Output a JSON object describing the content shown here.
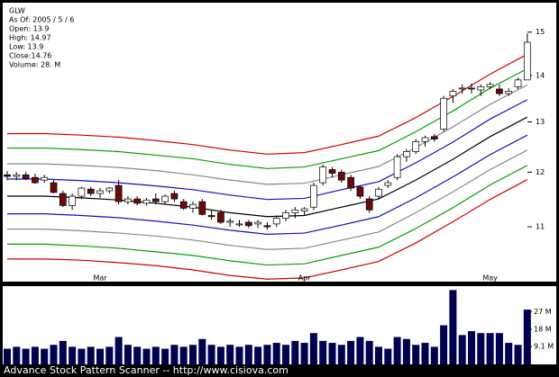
{
  "chart_data": {
    "type": "candlestick",
    "info": [
      "GLW",
      "As Of: 2005 / 5 / 6",
      "Open: 13.9",
      "High: 14.97",
      "Low: 13.9",
      "Close:14.76",
      "Volume: 28. M"
    ],
    "categories": [
      null,
      null,
      null,
      null,
      null,
      null,
      null,
      null,
      null,
      null,
      "Mar",
      null,
      null,
      null,
      null,
      null,
      null,
      null,
      null,
      null,
      null,
      null,
      null,
      null,
      null,
      null,
      null,
      null,
      null,
      null,
      null,
      null,
      "Apr",
      null,
      null,
      null,
      null,
      null,
      null,
      null,
      null,
      null,
      null,
      null,
      null,
      null,
      null,
      null,
      null,
      null,
      null,
      null,
      "May",
      null,
      null,
      null,
      null
    ],
    "open": [
      11.95,
      11.92,
      11.95,
      11.9,
      11.85,
      11.8,
      11.6,
      11.38,
      11.55,
      11.68,
      11.6,
      11.65,
      11.75,
      11.45,
      11.5,
      11.42,
      11.5,
      11.45,
      11.6,
      11.45,
      11.33,
      11.45,
      11.2,
      11.25,
      11.08,
      11.05,
      11.08,
      11.05,
      11.02,
      11.05,
      11.15,
      11.25,
      11.28,
      11.35,
      11.8,
      12.05,
      12.0,
      11.9,
      11.72,
      11.5,
      11.55,
      11.75,
      11.9,
      12.3,
      12.4,
      12.6,
      12.7,
      12.85,
      13.55,
      13.7,
      13.72,
      13.68,
      13.75,
      13.7,
      13.6,
      13.75,
      13.9
    ],
    "high": [
      12.02,
      12.0,
      12.0,
      11.97,
      11.95,
      11.85,
      11.65,
      11.6,
      11.72,
      11.72,
      11.7,
      11.72,
      11.85,
      11.55,
      11.55,
      11.52,
      11.6,
      11.58,
      11.65,
      11.5,
      11.45,
      11.5,
      11.3,
      11.3,
      11.15,
      11.12,
      11.12,
      11.12,
      11.08,
      11.2,
      11.3,
      11.35,
      11.35,
      11.8,
      12.15,
      12.1,
      12.05,
      11.95,
      11.75,
      11.55,
      11.72,
      11.85,
      12.35,
      12.45,
      12.65,
      12.72,
      12.75,
      13.55,
      13.7,
      13.8,
      13.82,
      13.8,
      13.85,
      13.8,
      13.72,
      13.95,
      14.97
    ],
    "low": [
      11.85,
      11.85,
      11.85,
      11.78,
      11.8,
      11.6,
      11.35,
      11.3,
      11.5,
      11.55,
      11.52,
      11.6,
      11.4,
      11.4,
      11.38,
      11.38,
      11.4,
      11.4,
      11.45,
      11.3,
      11.25,
      11.2,
      11.12,
      11.05,
      11.0,
      11.0,
      10.98,
      10.98,
      10.95,
      11.0,
      11.1,
      11.15,
      11.2,
      11.3,
      11.75,
      11.9,
      11.8,
      11.65,
      11.5,
      11.25,
      11.5,
      11.7,
      11.85,
      12.2,
      12.35,
      12.5,
      12.6,
      12.8,
      13.4,
      13.6,
      13.6,
      13.55,
      13.7,
      13.55,
      13.55,
      13.7,
      13.9
    ],
    "close": [
      11.92,
      11.95,
      11.88,
      11.8,
      11.9,
      11.62,
      11.38,
      11.55,
      11.7,
      11.6,
      11.65,
      11.7,
      11.45,
      11.5,
      11.42,
      11.48,
      11.45,
      11.55,
      11.5,
      11.33,
      11.4,
      11.22,
      11.18,
      11.08,
      11.1,
      11.05,
      11.02,
      11.08,
      11.0,
      11.15,
      11.25,
      11.3,
      11.32,
      11.75,
      12.1,
      11.98,
      11.85,
      11.7,
      11.55,
      11.3,
      11.68,
      11.8,
      12.3,
      12.4,
      12.6,
      12.68,
      12.65,
      13.5,
      13.65,
      13.72,
      13.7,
      13.75,
      13.8,
      13.6,
      13.65,
      13.9,
      14.76
    ],
    "volume": [
      8,
      9,
      8,
      9,
      8,
      10,
      12,
      9,
      8,
      9,
      8,
      9,
      14,
      10,
      9,
      8,
      9,
      8,
      10,
      9,
      10,
      13,
      10,
      9,
      10,
      9,
      10,
      9,
      10,
      11,
      10,
      12,
      11,
      16,
      12,
      11,
      10,
      12,
      14,
      12,
      9,
      8,
      14,
      13,
      10,
      11,
      9,
      20,
      38,
      15,
      17,
      16,
      16,
      16,
      11,
      10,
      28
    ],
    "up_color": "#ffffff",
    "down_color": "#6b0a0a",
    "ylim": [
      10.08,
      15.72
    ],
    "log_scale": true,
    "yticks": [
      11,
      12,
      13,
      14,
      15
    ],
    "volume_color": "#000050",
    "volume_ylim": [
      0,
      40
    ],
    "volume_yticks": [
      {
        "value": 9.1,
        "label": "9.1 M"
      },
      {
        "value": 18,
        "label": "18 M"
      },
      {
        "value": 27,
        "label": "27 M"
      }
    ],
    "bands": {
      "x": [
        0,
        4,
        8,
        12,
        16,
        20,
        24,
        28,
        32,
        36,
        40,
        44,
        48,
        52,
        56
      ],
      "series": [
        {
          "color": "#d00000",
          "values": [
            12.76,
            12.76,
            12.73,
            12.69,
            12.62,
            12.54,
            12.43,
            12.35,
            12.38,
            12.54,
            12.71,
            13.09,
            13.54,
            14.03,
            14.48
          ]
        },
        {
          "color": "#00a000",
          "values": [
            12.47,
            12.47,
            12.44,
            12.4,
            12.33,
            12.26,
            12.15,
            12.07,
            12.1,
            12.26,
            12.42,
            12.8,
            13.23,
            13.72,
            14.15
          ]
        },
        {
          "color": "#888888",
          "values": [
            12.16,
            12.16,
            12.13,
            12.09,
            12.03,
            11.95,
            11.85,
            11.77,
            11.79,
            11.95,
            12.11,
            12.48,
            12.9,
            13.37,
            13.79
          ]
        },
        {
          "color": "#1010c0",
          "values": [
            11.87,
            11.87,
            11.84,
            11.8,
            11.74,
            11.67,
            11.57,
            11.49,
            11.51,
            11.67,
            11.82,
            12.18,
            12.59,
            13.06,
            13.47
          ]
        },
        {
          "color": "#000000",
          "values": [
            11.55,
            11.55,
            11.52,
            11.48,
            11.42,
            11.35,
            11.25,
            11.18,
            11.2,
            11.35,
            11.5,
            11.85,
            12.25,
            12.7,
            13.1
          ]
        },
        {
          "color": "#1010c0",
          "values": [
            11.23,
            11.23,
            11.2,
            11.16,
            11.1,
            11.03,
            10.94,
            10.87,
            10.89,
            11.03,
            11.18,
            11.52,
            11.91,
            12.34,
            12.73
          ]
        },
        {
          "color": "#888888",
          "values": [
            10.96,
            10.96,
            10.93,
            10.89,
            10.84,
            10.77,
            10.68,
            10.61,
            10.63,
            10.77,
            10.91,
            11.25,
            11.63,
            12.05,
            12.43
          ]
        },
        {
          "color": "#00a000",
          "values": [
            10.7,
            10.7,
            10.67,
            10.63,
            10.57,
            10.51,
            10.42,
            10.35,
            10.37,
            10.51,
            10.65,
            10.97,
            11.34,
            11.76,
            12.13
          ]
        },
        {
          "color": "#d00000",
          "values": [
            10.45,
            10.45,
            10.43,
            10.39,
            10.34,
            10.27,
            10.18,
            10.12,
            10.14,
            10.27,
            10.41,
            10.72,
            11.09,
            11.49,
            11.86
          ]
        }
      ]
    },
    "footer": "Advance Stock Pattern Scanner -- http://www.cisiova.com"
  }
}
